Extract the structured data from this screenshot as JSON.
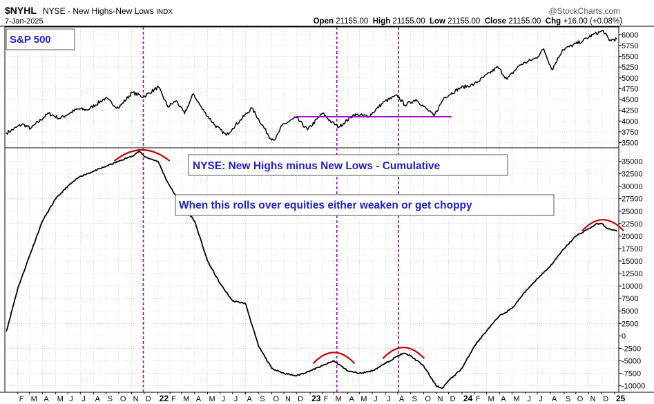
{
  "header": {
    "symbol": "$NYHL",
    "description": "NYSE - New Highs-New Lows",
    "type": "INDX",
    "date": "7-Jan-2025",
    "brand": "@StockCharts.com",
    "open_label": "Open",
    "open": "21155.00",
    "high_label": "High",
    "high": "21155.00",
    "low_label": "Low",
    "low": "21155.00",
    "close_label": "Close",
    "close": "21155.00",
    "chg_label": "Chg",
    "chg": "+16.00 (+0.08%)"
  },
  "colors": {
    "price_line": "#000000",
    "annotation_text": "#1f1fd6",
    "vertical_markers": "#9b00d6",
    "support_line": "#9b00d6",
    "arcs": "#cc0000",
    "grid": "#b8b8b8",
    "plot_bg": "#ffffff"
  },
  "chart_data": [
    {
      "type": "line",
      "panel": "top",
      "series": [
        {
          "name": "S&P 500"
        }
      ],
      "label_box": "S&P 500",
      "ylim": [
        3380,
        6180
      ],
      "yticks": [
        3500,
        3750,
        4000,
        4250,
        4500,
        4750,
        5000,
        5250,
        5500,
        5750,
        6000
      ],
      "ytick_labels": [
        "3500",
        "3750",
        "4000",
        "4250",
        "4500",
        "4750",
        "5000",
        "5250",
        "5500",
        "5750",
        "6000"
      ],
      "x": [
        "2021-01-05",
        "2021-02-12",
        "2021-03-04",
        "2021-04-16",
        "2021-05-12",
        "2021-06-25",
        "2021-07-19",
        "2021-08-30",
        "2021-09-30",
        "2021-11-02",
        "2021-11-30",
        "2022-01-04",
        "2022-01-27",
        "2022-02-16",
        "2022-03-08",
        "2022-03-29",
        "2022-04-20",
        "2022-05-20",
        "2022-06-16",
        "2022-07-01",
        "2022-08-16",
        "2022-09-30",
        "2022-10-12",
        "2022-10-28",
        "2022-11-30",
        "2022-12-28",
        "2023-02-02",
        "2023-02-24",
        "2023-03-13",
        "2023-04-18",
        "2023-05-24",
        "2023-06-30",
        "2023-07-31",
        "2023-08-18",
        "2023-09-14",
        "2023-10-27",
        "2023-11-20",
        "2023-12-29",
        "2024-01-31",
        "2024-03-28",
        "2024-04-19",
        "2024-05-20",
        "2024-06-28",
        "2024-07-16",
        "2024-08-05",
        "2024-08-30",
        "2024-10-18",
        "2024-11-11",
        "2024-12-06",
        "2024-12-20",
        "2025-01-07"
      ],
      "y": [
        3720,
        3930,
        3830,
        4180,
        4060,
        4280,
        4260,
        4530,
        4300,
        4660,
        4560,
        4790,
        4330,
        4470,
        4170,
        4630,
        4270,
        3900,
        3670,
        3830,
        4300,
        3600,
        3580,
        3900,
        4080,
        3800,
        4180,
        3970,
        3860,
        4150,
        4110,
        4450,
        4590,
        4370,
        4500,
        4120,
        4540,
        4770,
        4850,
        5250,
        4970,
        5300,
        5460,
        5670,
        5190,
        5650,
        5860,
        6000,
        6090,
        5870,
        5900
      ],
      "support_line": {
        "x": [
          "2022-12-01",
          "2023-12-08"
        ],
        "y": 4100
      }
    },
    {
      "type": "line",
      "panel": "bottom",
      "series": [
        {
          "name": "NYSE: New Highs minus New Lows - Cumulative"
        }
      ],
      "annotations": [
        "NYSE: New Highs minus New Lows - Cumulative",
        "When this rolls over equities either weaken or get choppy"
      ],
      "ylim": [
        -11300,
        37700
      ],
      "yticks": [
        -10000,
        -7500,
        -5000,
        -2500,
        0,
        2500,
        5000,
        7500,
        10000,
        12500,
        15000,
        17500,
        20000,
        22500,
        25000,
        27500,
        30000,
        32500,
        35000
      ],
      "ytick_labels": [
        "-10000",
        "-7500",
        "-5000",
        "-2500",
        "0",
        "2500",
        "5000",
        "7500",
        "10000",
        "12500",
        "15000",
        "17500",
        "20000",
        "22500",
        "25000",
        "27500",
        "30000",
        "32500",
        "35000"
      ],
      "x": [
        "2021-01-05",
        "2021-02-01",
        "2021-03-01",
        "2021-04-01",
        "2021-05-03",
        "2021-06-01",
        "2021-07-01",
        "2021-08-02",
        "2021-09-01",
        "2021-10-01",
        "2021-11-01",
        "2021-11-19",
        "2021-12-01",
        "2021-12-15",
        "2022-01-03",
        "2022-01-25",
        "2022-02-15",
        "2022-03-01",
        "2022-04-01",
        "2022-05-02",
        "2022-06-01",
        "2022-07-01",
        "2022-08-01",
        "2022-09-01",
        "2022-10-03",
        "2022-11-01",
        "2022-12-01",
        "2023-01-03",
        "2023-02-01",
        "2023-03-01",
        "2023-04-03",
        "2023-05-01",
        "2023-06-01",
        "2023-07-03",
        "2023-08-01",
        "2023-08-15",
        "2023-09-01",
        "2023-10-02",
        "2023-11-01",
        "2023-11-15",
        "2023-12-01",
        "2024-01-02",
        "2024-02-01",
        "2024-03-01",
        "2024-04-01",
        "2024-05-01",
        "2024-06-03",
        "2024-07-01",
        "2024-08-01",
        "2024-09-03",
        "2024-10-01",
        "2024-11-01",
        "2024-11-22",
        "2024-12-02",
        "2024-12-16",
        "2025-01-07"
      ],
      "y": [
        1000,
        9500,
        16000,
        23000,
        27500,
        30000,
        32000,
        33000,
        34000,
        35000,
        36000,
        37000,
        36000,
        35500,
        35000,
        31000,
        28000,
        26500,
        23000,
        15000,
        10500,
        7000,
        6500,
        -2000,
        -6500,
        -7500,
        -8000,
        -7000,
        -6000,
        -5000,
        -7000,
        -7500,
        -7000,
        -5500,
        -4000,
        -3500,
        -4000,
        -6000,
        -10000,
        -10500,
        -9000,
        -6500,
        -2000,
        1000,
        4000,
        5500,
        9000,
        11500,
        14000,
        17500,
        20000,
        21500,
        22500,
        22500,
        21500,
        21000
      ]
    }
  ],
  "x_axis": {
    "labels": [
      "F",
      "M",
      "A",
      "M",
      "J",
      "J",
      "A",
      "S",
      "O",
      "N",
      "D",
      "22",
      "F",
      "M",
      "A",
      "M",
      "J",
      "J",
      "A",
      "S",
      "O",
      "N",
      "D",
      "23",
      "F",
      "M",
      "A",
      "M",
      "J",
      "J",
      "A",
      "S",
      "O",
      "N",
      "D",
      "24",
      "F",
      "M",
      "A",
      "M",
      "J",
      "J",
      "A",
      "S",
      "O",
      "N",
      "D",
      "25"
    ],
    "dates": [
      "2021-02-01",
      "2021-03-01",
      "2021-04-01",
      "2021-05-03",
      "2021-06-01",
      "2021-07-01",
      "2021-08-02",
      "2021-09-01",
      "2021-10-01",
      "2021-11-01",
      "2021-12-01",
      "2022-01-03",
      "2022-02-01",
      "2022-03-01",
      "2022-04-01",
      "2022-05-02",
      "2022-06-01",
      "2022-07-01",
      "2022-08-01",
      "2022-09-01",
      "2022-10-03",
      "2022-11-01",
      "2022-12-01",
      "2023-01-03",
      "2023-02-01",
      "2023-03-01",
      "2023-04-03",
      "2023-05-01",
      "2023-06-01",
      "2023-07-03",
      "2023-08-01",
      "2023-09-01",
      "2023-10-02",
      "2023-11-01",
      "2023-12-01",
      "2024-01-02",
      "2024-02-01",
      "2024-03-01",
      "2024-04-01",
      "2024-05-01",
      "2024-06-03",
      "2024-07-01",
      "2024-08-01",
      "2024-09-03",
      "2024-10-01",
      "2024-11-01",
      "2024-12-02",
      "2025-01-02"
    ],
    "bold_labels": [
      "22",
      "23",
      "24",
      "25"
    ]
  },
  "markers": {
    "vertical_dates": [
      "2021-11-29",
      "2023-03-08",
      "2023-08-03"
    ],
    "arcs": [
      {
        "center": "2021-11-26",
        "value": 37000
      },
      {
        "center": "2023-03-01",
        "value": -3600
      },
      {
        "center": "2023-08-15",
        "value": -2600
      },
      {
        "center": "2024-12-05",
        "value": 23000
      }
    ]
  }
}
